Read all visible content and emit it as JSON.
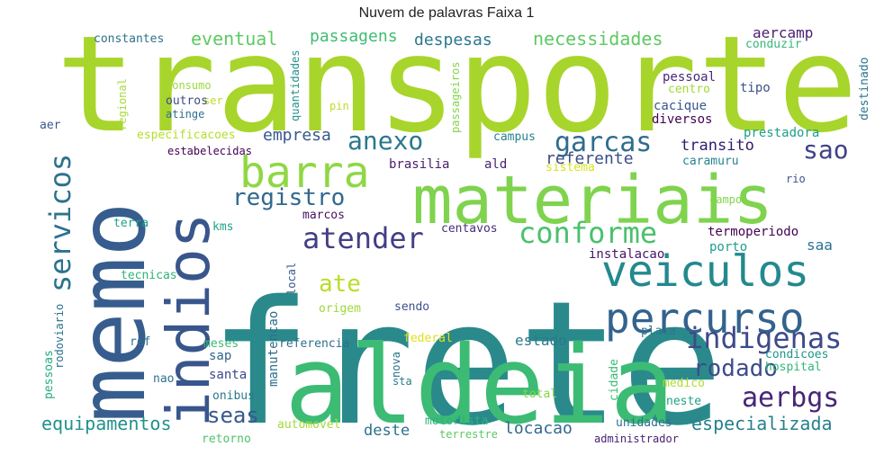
{
  "chart_data": {
    "type": "wordcloud",
    "title": "Nuvem de palavras Faixa 1",
    "words": [
      {
        "text": "transporte",
        "weight": 100,
        "color": "#a8d52b"
      },
      {
        "text": "frete",
        "weight": 98,
        "color": "#2a8a8b"
      },
      {
        "text": "memo",
        "weight": 78,
        "color": "#365d8d"
      },
      {
        "text": "aldeia",
        "weight": 80,
        "color": "#3cbb75"
      },
      {
        "text": "materiais",
        "weight": 62,
        "color": "#7fd34e"
      },
      {
        "text": "indios",
        "weight": 55,
        "color": "#39568c"
      },
      {
        "text": "barra",
        "weight": 42,
        "color": "#8fd744"
      },
      {
        "text": "veiculos",
        "weight": 45,
        "color": "#23898e"
      },
      {
        "text": "percurso",
        "weight": 42,
        "color": "#33638d"
      },
      {
        "text": "servicos",
        "weight": 30,
        "color": "#2c728e"
      },
      {
        "text": "indigenas",
        "weight": 30,
        "color": "#3e4a89"
      },
      {
        "text": "conforme",
        "weight": 28,
        "color": "#4ac16d"
      },
      {
        "text": "atender",
        "weight": 28,
        "color": "#433e85"
      },
      {
        "text": "garcas",
        "weight": 27,
        "color": "#2f6c8e"
      },
      {
        "text": "aerbgs",
        "weight": 26,
        "color": "#482576"
      },
      {
        "text": "anexo",
        "weight": 24,
        "color": "#2a788e"
      },
      {
        "text": "rodado",
        "weight": 23,
        "color": "#3e4c8a"
      },
      {
        "text": "sao",
        "weight": 24,
        "color": "#404387"
      },
      {
        "text": "registro",
        "weight": 22,
        "color": "#31688e"
      },
      {
        "text": "ate",
        "weight": 22,
        "color": "#b8de29"
      },
      {
        "text": "seas",
        "weight": 22,
        "color": "#38588c"
      },
      {
        "text": "equipamentos",
        "weight": 19,
        "color": "#20928c"
      },
      {
        "text": "especializada",
        "weight": 18,
        "color": "#27808e"
      },
      {
        "text": "necessidades",
        "weight": 18,
        "color": "#5ec962"
      },
      {
        "text": "eventual",
        "weight": 16,
        "color": "#5ec962"
      },
      {
        "text": "passagens",
        "weight": 16,
        "color": "#3fbc73"
      },
      {
        "text": "despesas",
        "weight": 15,
        "color": "#2a788e"
      },
      {
        "text": "empresa",
        "weight": 15,
        "color": "#38588c"
      },
      {
        "text": "referente",
        "weight": 15,
        "color": "#3d4d8a"
      },
      {
        "text": "transito",
        "weight": 15,
        "color": "#2d1e6c"
      },
      {
        "text": "locacao",
        "weight": 15,
        "color": "#31688e"
      },
      {
        "text": "deste",
        "weight": 14,
        "color": "#2d708e"
      },
      {
        "text": "termoperiodo",
        "weight": 13,
        "color": "#440154"
      },
      {
        "text": "estado",
        "weight": 13,
        "color": "#2a788e"
      },
      {
        "text": "aercamp",
        "weight": 13,
        "color": "#481f70"
      },
      {
        "text": "saa",
        "weight": 12,
        "color": "#2c728e"
      },
      {
        "text": "porto",
        "weight": 12,
        "color": "#1f9e89"
      },
      {
        "text": "cacique",
        "weight": 11,
        "color": "#39568c"
      },
      {
        "text": "pessoal",
        "weight": 11,
        "color": "#482878"
      },
      {
        "text": "diversos",
        "weight": 11,
        "color": "#440154"
      },
      {
        "text": "tipo",
        "weight": 11,
        "color": "#3b528b"
      },
      {
        "text": "centavos",
        "weight": 11,
        "color": "#472f7d"
      },
      {
        "text": "instalacao",
        "weight": 11,
        "color": "#481467"
      },
      {
        "text": "brasilia",
        "weight": 11,
        "color": "#481b6d"
      },
      {
        "text": "ald",
        "weight": 11,
        "color": "#482173"
      },
      {
        "text": "caramuru",
        "weight": 10,
        "color": "#25838e"
      },
      {
        "text": "prestadora",
        "weight": 11,
        "color": "#1fa088"
      },
      {
        "text": "constantes",
        "weight": 11,
        "color": "#2c728e"
      },
      {
        "text": "conduzir",
        "weight": 10,
        "color": "#35b779"
      },
      {
        "text": "destinado",
        "weight": 10,
        "color": "#2b758e"
      },
      {
        "text": "centro",
        "weight": 10,
        "color": "#a0da39"
      },
      {
        "text": "sistema",
        "weight": 10,
        "color": "#d8e219"
      },
      {
        "text": "campus",
        "weight": 10,
        "color": "#26828e"
      },
      {
        "text": "especificacoes",
        "weight": 11,
        "color": "#b5de2b"
      },
      {
        "text": "estabelecidas",
        "weight": 9,
        "color": "#440154"
      },
      {
        "text": "marcos",
        "weight": 10,
        "color": "#471063"
      },
      {
        "text": "terra",
        "weight": 10,
        "color": "#1fa187"
      },
      {
        "text": "kms",
        "weight": 10,
        "color": "#20a486"
      },
      {
        "text": "tecnicas",
        "weight": 10,
        "color": "#2eb37c"
      },
      {
        "text": "origem",
        "weight": 10,
        "color": "#9dd93b"
      },
      {
        "text": "sendo",
        "weight": 10,
        "color": "#3b528b"
      },
      {
        "text": "local",
        "weight": 10,
        "color": "#38598c"
      },
      {
        "text": "manutencao",
        "weight": 12,
        "color": "#2e6f8e"
      },
      {
        "text": "referencia",
        "weight": 11,
        "color": "#2e6e8e"
      },
      {
        "text": "meses",
        "weight": 10,
        "color": "#3aba76"
      },
      {
        "text": "ref",
        "weight": 10,
        "color": "#2d708e"
      },
      {
        "text": "sap",
        "weight": 11,
        "color": "#32658e"
      },
      {
        "text": "santa",
        "weight": 11,
        "color": "#3f4889"
      },
      {
        "text": "nao",
        "weight": 11,
        "color": "#2d708e"
      },
      {
        "text": "onibus",
        "weight": 10,
        "color": "#2a778e"
      },
      {
        "text": "retorno",
        "weight": 10,
        "color": "#4ec36b"
      },
      {
        "text": "automovel",
        "weight": 10,
        "color": "#a2da37"
      },
      {
        "text": "motorista",
        "weight": 10,
        "color": "#2db27d"
      },
      {
        "text": "terrestre",
        "weight": 9,
        "color": "#5cc863"
      },
      {
        "text": "administrador",
        "weight": 9,
        "color": "#481f70"
      },
      {
        "text": "unidades",
        "weight": 10,
        "color": "#2d708e"
      },
      {
        "text": "neste",
        "weight": 10,
        "color": "#1fa187"
      },
      {
        "text": "total",
        "weight": 10,
        "color": "#84d44b"
      },
      {
        "text": "medico",
        "weight": 10,
        "color": "#addc30"
      },
      {
        "text": "hospital",
        "weight": 10,
        "color": "#32b67a"
      },
      {
        "text": "condicoes",
        "weight": 10,
        "color": "#1f958b"
      },
      {
        "text": "placa",
        "weight": 10,
        "color": "#2a778e"
      },
      {
        "text": "cidade",
        "weight": 10,
        "color": "#38b977"
      },
      {
        "text": "federal",
        "weight": 10,
        "color": "#dde318"
      },
      {
        "text": "nova",
        "weight": 10,
        "color": "#2c718e"
      },
      {
        "text": "sta",
        "weight": 10,
        "color": "#287c8e"
      },
      {
        "text": "pessoas",
        "weight": 10,
        "color": "#25ac82"
      },
      {
        "text": "rodoviario",
        "weight": 9,
        "color": "#2c718e"
      },
      {
        "text": "aer",
        "weight": 10,
        "color": "#38598c"
      },
      {
        "text": "ser",
        "weight": 10,
        "color": "#bade28"
      },
      {
        "text": "consumo",
        "weight": 9,
        "color": "#9bd93c"
      },
      {
        "text": "outros",
        "weight": 10,
        "color": "#3e4a89"
      },
      {
        "text": "atinge",
        "weight": 9,
        "color": "#2e6f8e"
      },
      {
        "text": "regional",
        "weight": 9,
        "color": "#a5db36"
      },
      {
        "text": "quantidades",
        "weight": 9,
        "color": "#21908d"
      },
      {
        "text": "passageiros",
        "weight": 9,
        "color": "#84d44b"
      },
      {
        "text": "pin",
        "weight": 10,
        "color": "#bade28"
      },
      {
        "text": "campo",
        "weight": 9,
        "color": "#84d44b"
      },
      {
        "text": "rio",
        "weight": 10,
        "color": "#3b528b"
      }
    ]
  }
}
